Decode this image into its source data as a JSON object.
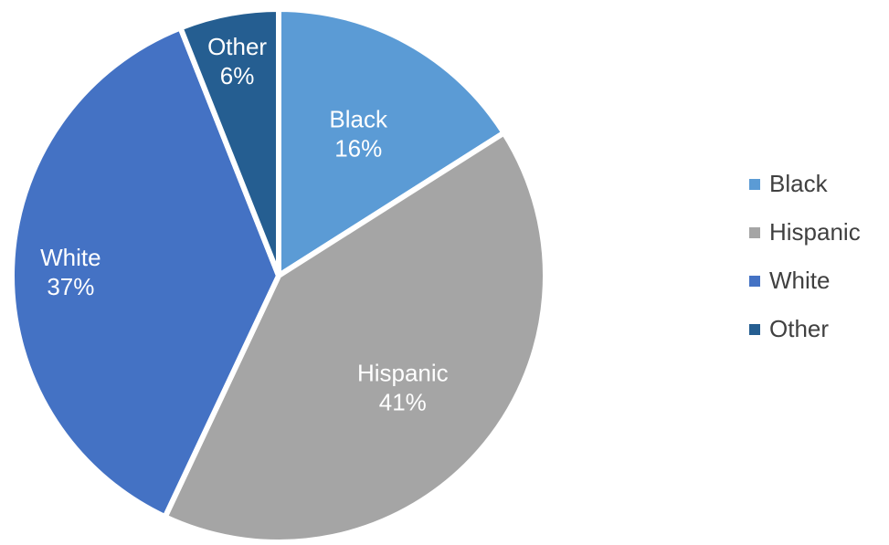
{
  "chart_data": {
    "type": "pie",
    "title": "",
    "categories": [
      "Black",
      "Hispanic",
      "White",
      "Other"
    ],
    "values": [
      16,
      41,
      37,
      6
    ],
    "value_labels": [
      "16%",
      "41%",
      "37%",
      "6%"
    ],
    "colors": [
      "#5B9BD5",
      "#A5A5A5",
      "#4472C4",
      "#255E91"
    ],
    "legend": {
      "position": "right",
      "entries": [
        "Black",
        "Hispanic",
        "White",
        "Other"
      ]
    }
  }
}
